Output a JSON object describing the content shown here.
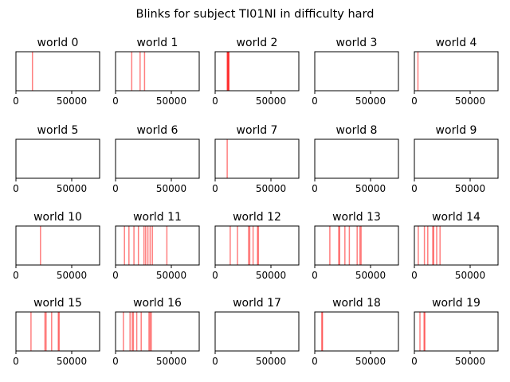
{
  "title": "Blinks for subject TI01NI in difficulty hard",
  "style": {
    "line_color": "#ff0000",
    "line_opacity": 0.5,
    "axes_color": "#000000"
  },
  "xlim": [
    0,
    75000
  ],
  "xticks": [
    0,
    50000
  ],
  "chart_data": [
    {
      "type": "event",
      "title": "world 0",
      "xlim": [
        0,
        75000
      ],
      "xticks": [
        0,
        50000
      ],
      "events": [
        14800
      ]
    },
    {
      "type": "event",
      "title": "world 1",
      "xlim": [
        0,
        75000
      ],
      "xticks": [
        0,
        50000
      ],
      "events": [
        14500,
        22000,
        26000
      ]
    },
    {
      "type": "event",
      "title": "world 2",
      "xlim": [
        0,
        75000
      ],
      "xticks": [
        0,
        50000
      ],
      "events": [
        10800,
        11200,
        11600,
        12000,
        12400
      ]
    },
    {
      "type": "event",
      "title": "world 3",
      "xlim": [
        0,
        75000
      ],
      "xticks": [
        0,
        50000
      ],
      "events": []
    },
    {
      "type": "event",
      "title": "world 4",
      "xlim": [
        0,
        75000
      ],
      "xticks": [
        0,
        50000
      ],
      "events": [
        3200
      ]
    },
    {
      "type": "event",
      "title": "world 5",
      "xlim": [
        0,
        75000
      ],
      "xticks": [
        0,
        50000
      ],
      "events": []
    },
    {
      "type": "event",
      "title": "world 6",
      "xlim": [
        0,
        75000
      ],
      "xticks": [
        0,
        50000
      ],
      "events": []
    },
    {
      "type": "event",
      "title": "world 7",
      "xlim": [
        0,
        75000
      ],
      "xticks": [
        0,
        50000
      ],
      "events": [
        10800
      ]
    },
    {
      "type": "event",
      "title": "world 8",
      "xlim": [
        0,
        75000
      ],
      "xticks": [
        0,
        50000
      ],
      "events": []
    },
    {
      "type": "event",
      "title": "world 9",
      "xlim": [
        0,
        75000
      ],
      "xticks": [
        0,
        50000
      ],
      "events": []
    },
    {
      "type": "event",
      "title": "world 10",
      "xlim": [
        0,
        75000
      ],
      "xticks": [
        0,
        50000
      ],
      "events": [
        22000
      ]
    },
    {
      "type": "event",
      "title": "world 11",
      "xlim": [
        0,
        75000
      ],
      "xticks": [
        0,
        50000
      ],
      "events": [
        8000,
        12000,
        16500,
        20500,
        25500,
        27000,
        29000,
        31000,
        33000,
        46000
      ]
    },
    {
      "type": "event",
      "title": "world 12",
      "xlim": [
        0,
        75000
      ],
      "xticks": [
        0,
        50000
      ],
      "events": [
        13500,
        20000,
        30000,
        31000,
        34000,
        38000,
        38800
      ]
    },
    {
      "type": "event",
      "title": "world 13",
      "xlim": [
        0,
        75000
      ],
      "xticks": [
        0,
        50000
      ],
      "events": [
        13500,
        21500,
        22300,
        27000,
        31000,
        38000,
        40500,
        41500
      ]
    },
    {
      "type": "event",
      "title": "world 14",
      "xlim": [
        0,
        75000
      ],
      "xticks": [
        0,
        50000
      ],
      "events": [
        3500,
        9000,
        12000,
        16500,
        17300,
        20000,
        23000
      ]
    },
    {
      "type": "event",
      "title": "world 15",
      "xlim": [
        0,
        75000
      ],
      "xticks": [
        0,
        50000
      ],
      "events": [
        13500,
        26000,
        27000,
        32000,
        38000,
        38800
      ]
    },
    {
      "type": "event",
      "title": "world 16",
      "xlim": [
        0,
        75000
      ],
      "xticks": [
        0,
        50000
      ],
      "events": [
        7000,
        13000,
        15000,
        16000,
        19000,
        23000,
        30000,
        31000,
        32000
      ]
    },
    {
      "type": "event",
      "title": "world 17",
      "xlim": [
        0,
        75000
      ],
      "xticks": [
        0,
        50000
      ],
      "events": []
    },
    {
      "type": "event",
      "title": "world 18",
      "xlim": [
        0,
        75000
      ],
      "xticks": [
        0,
        50000
      ],
      "events": [
        6300,
        6900
      ]
    },
    {
      "type": "event",
      "title": "world 19",
      "xlim": [
        0,
        75000
      ],
      "xticks": [
        0,
        50000
      ],
      "events": [
        5000,
        8700,
        9400
      ]
    }
  ]
}
